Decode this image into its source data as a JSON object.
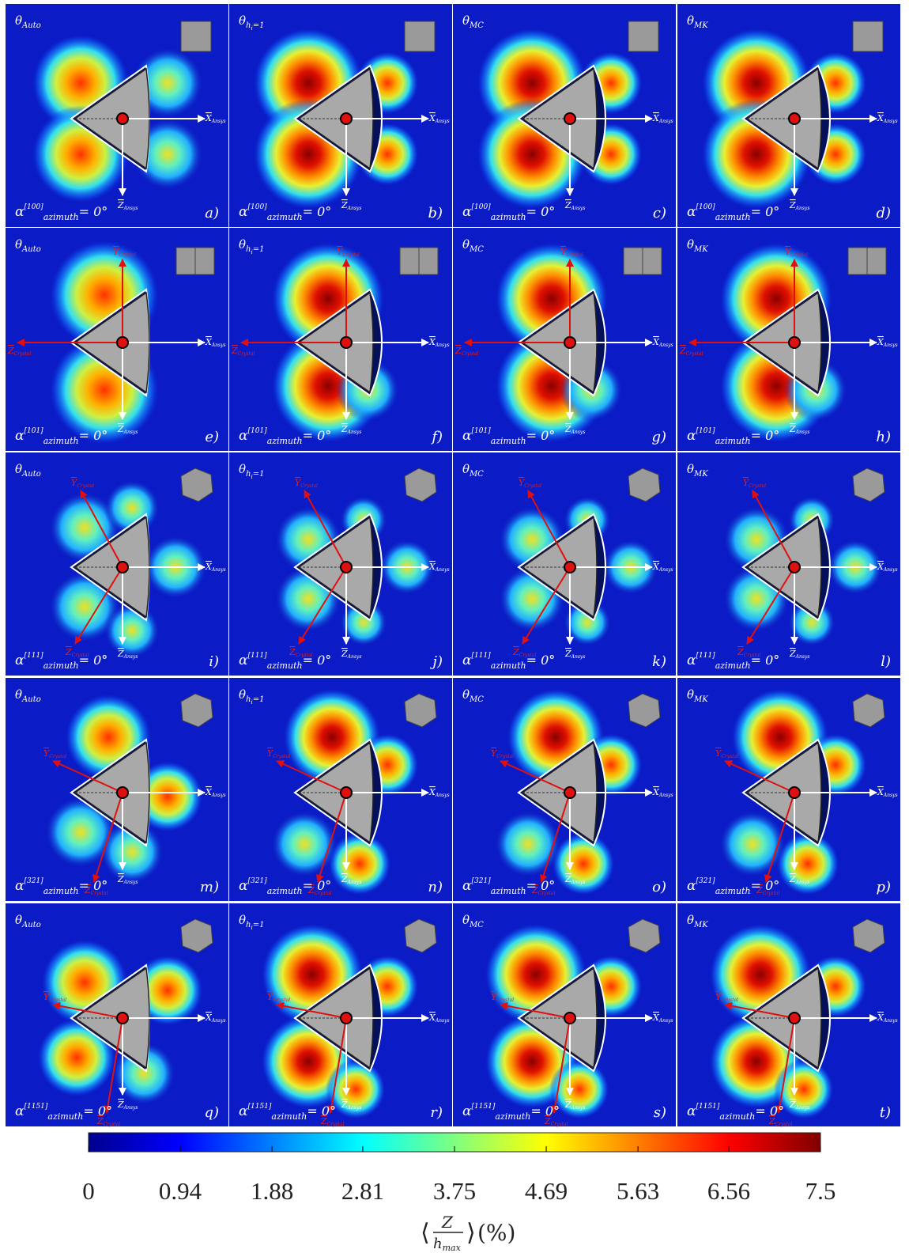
{
  "columns": [
    {
      "symbol": "θ",
      "subscript": "Auto"
    },
    {
      "symbol": "θ",
      "subscript": "h",
      "subsubscript": "i",
      "suffix": "=1"
    },
    {
      "symbol": "θ",
      "subscript": "MC"
    },
    {
      "symbol": "θ",
      "subscript": "MK"
    }
  ],
  "alpha": {
    "symbol": "α",
    "subscript": "azimuth",
    "equals": "= 0°"
  },
  "axis_labels": {
    "x": "X",
    "y": "Y",
    "z": "Z",
    "ansys": "Ansys",
    "crystal": "Crystal"
  },
  "rows": [
    {
      "direction": "[100]",
      "letters": [
        "a)",
        "b)",
        "c)",
        "d)"
      ]
    },
    {
      "direction": "[101]",
      "letters": [
        "e)",
        "f)",
        "g)",
        "h)"
      ]
    },
    {
      "direction": "[111]",
      "letters": [
        "i)",
        "j)",
        "k)",
        "l)"
      ]
    },
    {
      "direction": "[321]",
      "letters": [
        "m)",
        "n)",
        "o)",
        "p)"
      ]
    },
    {
      "direction": "[1151]",
      "letters": [
        "q)",
        "r)",
        "s)",
        "t)"
      ]
    }
  ],
  "colorbar": {
    "range": [
      0,
      7.5
    ],
    "ticks": [
      0,
      0.94,
      1.88,
      2.81,
      3.75,
      4.69,
      5.63,
      6.56,
      7.5
    ],
    "label": {
      "open": "⟨",
      "numerator": "Z",
      "denominator": "h",
      "denominator_subscript": "max",
      "close": "⟩",
      "unit": "(%)"
    }
  }
}
